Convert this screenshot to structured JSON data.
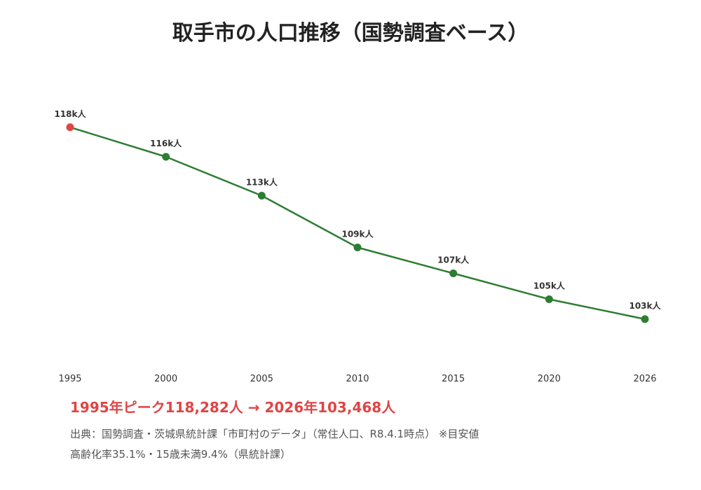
{
  "colors": {
    "line": "#2e7d32",
    "peak": "#e04444",
    "text": "#333333"
  },
  "chart_data": {
    "type": "line",
    "title": "取手市の人口推移（国勢調査ベース）",
    "xlabel": "",
    "ylabel": "",
    "categories": [
      "1995",
      "2000",
      "2005",
      "2010",
      "2015",
      "2020",
      "2026"
    ],
    "values": [
      118282,
      116000,
      113000,
      109000,
      107000,
      105000,
      103468
    ],
    "data_labels": [
      "118k人",
      "116k人",
      "113k人",
      "109k人",
      "107k人",
      "105k人",
      "103k人"
    ],
    "peak_index": 0,
    "ylim": [
      100000,
      120000
    ],
    "grid": false,
    "legend": "none"
  },
  "summary": {
    "text": "1995年ピーク118,282人 → 2026年103,468人"
  },
  "notes": {
    "source": "出典：国勢調査・茨城県統計課「市町村のデータ」（常住人口、R8.4.1時点） ※目安値",
    "aging": "高齢化率35.1%・15歳未満9.4%（県統計課）"
  }
}
